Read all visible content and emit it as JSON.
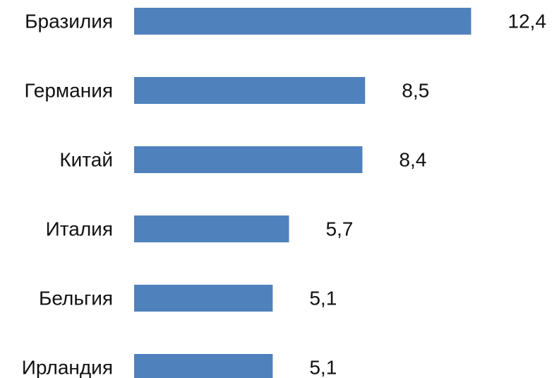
{
  "chart_data": {
    "type": "bar",
    "orientation": "horizontal",
    "categories": [
      "Бразилия",
      "Германия",
      "Китай",
      "Италия",
      "Бельгия",
      "Ирландия"
    ],
    "values": [
      12.4,
      8.5,
      8.4,
      5.7,
      5.1,
      5.1
    ],
    "value_labels": [
      "12,4",
      "8,5",
      "8,4",
      "5,7",
      "5,1",
      "5,1"
    ],
    "bar_color": "#4F81BD",
    "text_color": "#111111",
    "grid": false,
    "legend": "none"
  }
}
